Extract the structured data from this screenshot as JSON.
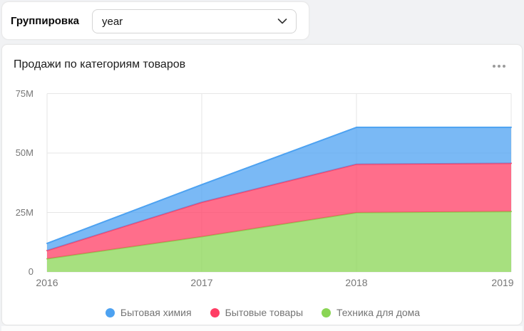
{
  "controls": {
    "group_by": {
      "label": "Группировка",
      "value": "year",
      "chevron_icon": "chevron-down"
    }
  },
  "card": {
    "title": "Продажи по категориям товаров",
    "menu_icon": "ellipsis-horizontal"
  },
  "chart_data": {
    "type": "area",
    "stacked": true,
    "title": "Продажи по категориям товаров",
    "x": [
      "2016",
      "2017",
      "2018",
      "2019"
    ],
    "xlabel": "",
    "ylabel": "",
    "unit": "M (millions)",
    "ylim_m": [
      0,
      75
    ],
    "ytick_values_m": [
      0,
      25,
      50,
      75
    ],
    "ytick_labels": [
      "0",
      "25M",
      "50M",
      "75M"
    ],
    "grid": true,
    "legend_position": "bottom-center",
    "fill_opacity": 0.75,
    "series": [
      {
        "name": "Бытовая химия",
        "color": "#4DA2F1",
        "values_m": [
          3.0,
          7.4,
          15.5,
          15.1
        ]
      },
      {
        "name": "Бытовые товары",
        "color": "#FF3D64",
        "values_m": [
          3.5,
          14.5,
          20.4,
          20.3
        ]
      },
      {
        "name": "Техника для дома",
        "color": "#8AD554",
        "values_m": [
          5.5,
          14.8,
          24.9,
          25.4
        ]
      }
    ],
    "stack_order_bottom_to_top": [
      "Техника для дома",
      "Бытовые товары",
      "Бытовая химия"
    ],
    "cumulative_totals_m": {
      "2016": 12.0,
      "2017": 36.7,
      "2018": 60.8,
      "2019": 60.8
    }
  },
  "colors": {
    "page_bg": "#f1f2f4",
    "card_bg": "#ffffff",
    "grid": "#e6e6e6",
    "axis_label": "#767676",
    "legend_label": "#747474",
    "menu_dots": "#9b9b9b"
  }
}
